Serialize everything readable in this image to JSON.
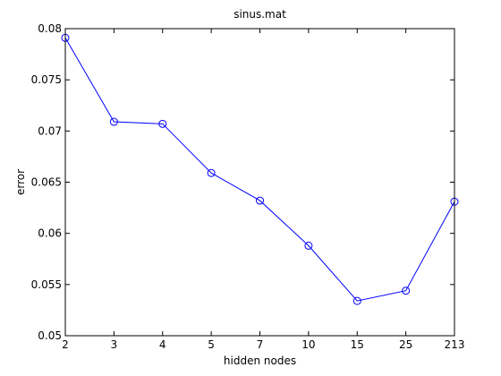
{
  "chart_data": {
    "type": "line",
    "title": "sinus.mat",
    "xlabel": "hidden nodes",
    "ylabel": "error",
    "categories": [
      "2",
      "3",
      "4",
      "5",
      "7",
      "10",
      "15",
      "25",
      "213"
    ],
    "series": [
      {
        "values": [
          0.0791,
          0.0709,
          0.0707,
          0.0659,
          0.0632,
          0.0588,
          0.0534,
          0.0544,
          0.0631
        ]
      }
    ],
    "ylim": [
      0.05,
      0.08
    ],
    "yticks": [
      0.05,
      0.055,
      0.06,
      0.065,
      0.07,
      0.075,
      0.08
    ],
    "ytick_labels": [
      "0.05",
      "0.055",
      "0.06",
      "0.065",
      "0.07",
      "0.075",
      "0.08"
    ],
    "grid": false,
    "marker": "circle",
    "line_color": "#0000ff",
    "axes_color": "#000000",
    "background": "#ffffff"
  }
}
